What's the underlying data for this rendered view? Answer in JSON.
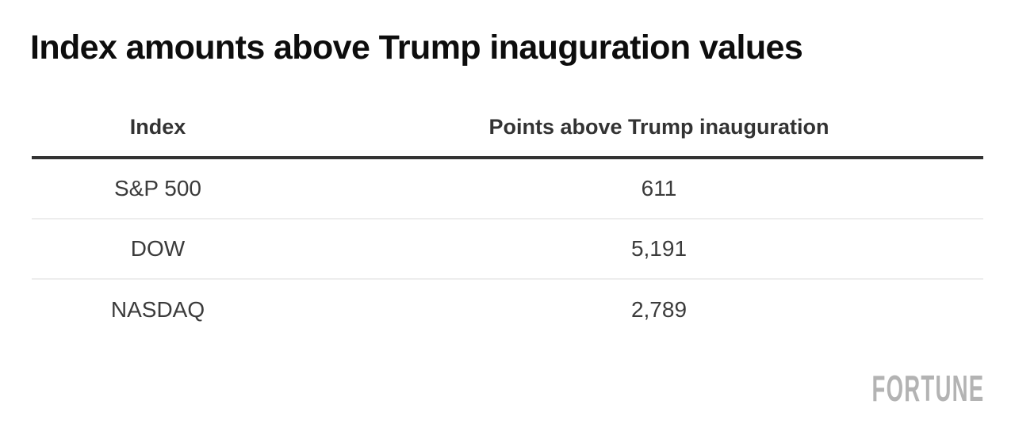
{
  "title": "Index amounts above Trump inauguration values",
  "table": {
    "header": {
      "col1": "Index",
      "col2": "Points above Trump inauguration"
    },
    "rows": [
      {
        "label": "S&P 500",
        "value": "611"
      },
      {
        "label": "DOW",
        "value": "5,191"
      },
      {
        "label": "NASDAQ",
        "value": "2,789"
      }
    ]
  },
  "branding": {
    "logo": "FORTUNE"
  },
  "colors": {
    "background": "#ffffff",
    "title_text": "#0d0d0d",
    "header_text": "#333333",
    "body_text": "#3b3b3b",
    "header_rule": "#333333",
    "row_separator": "#ededed",
    "logo_gray": "#b3b3b3"
  },
  "chart_data": {
    "type": "table",
    "title": "Index amounts above Trump inauguration values",
    "columns": [
      "Index",
      "Points above Trump inauguration"
    ],
    "rows": [
      [
        "S&P 500",
        611
      ],
      [
        "DOW",
        5191
      ],
      [
        "NASDAQ",
        2789
      ]
    ],
    "legend_position": "none",
    "grid": false,
    "source_brand": "FORTUNE"
  }
}
